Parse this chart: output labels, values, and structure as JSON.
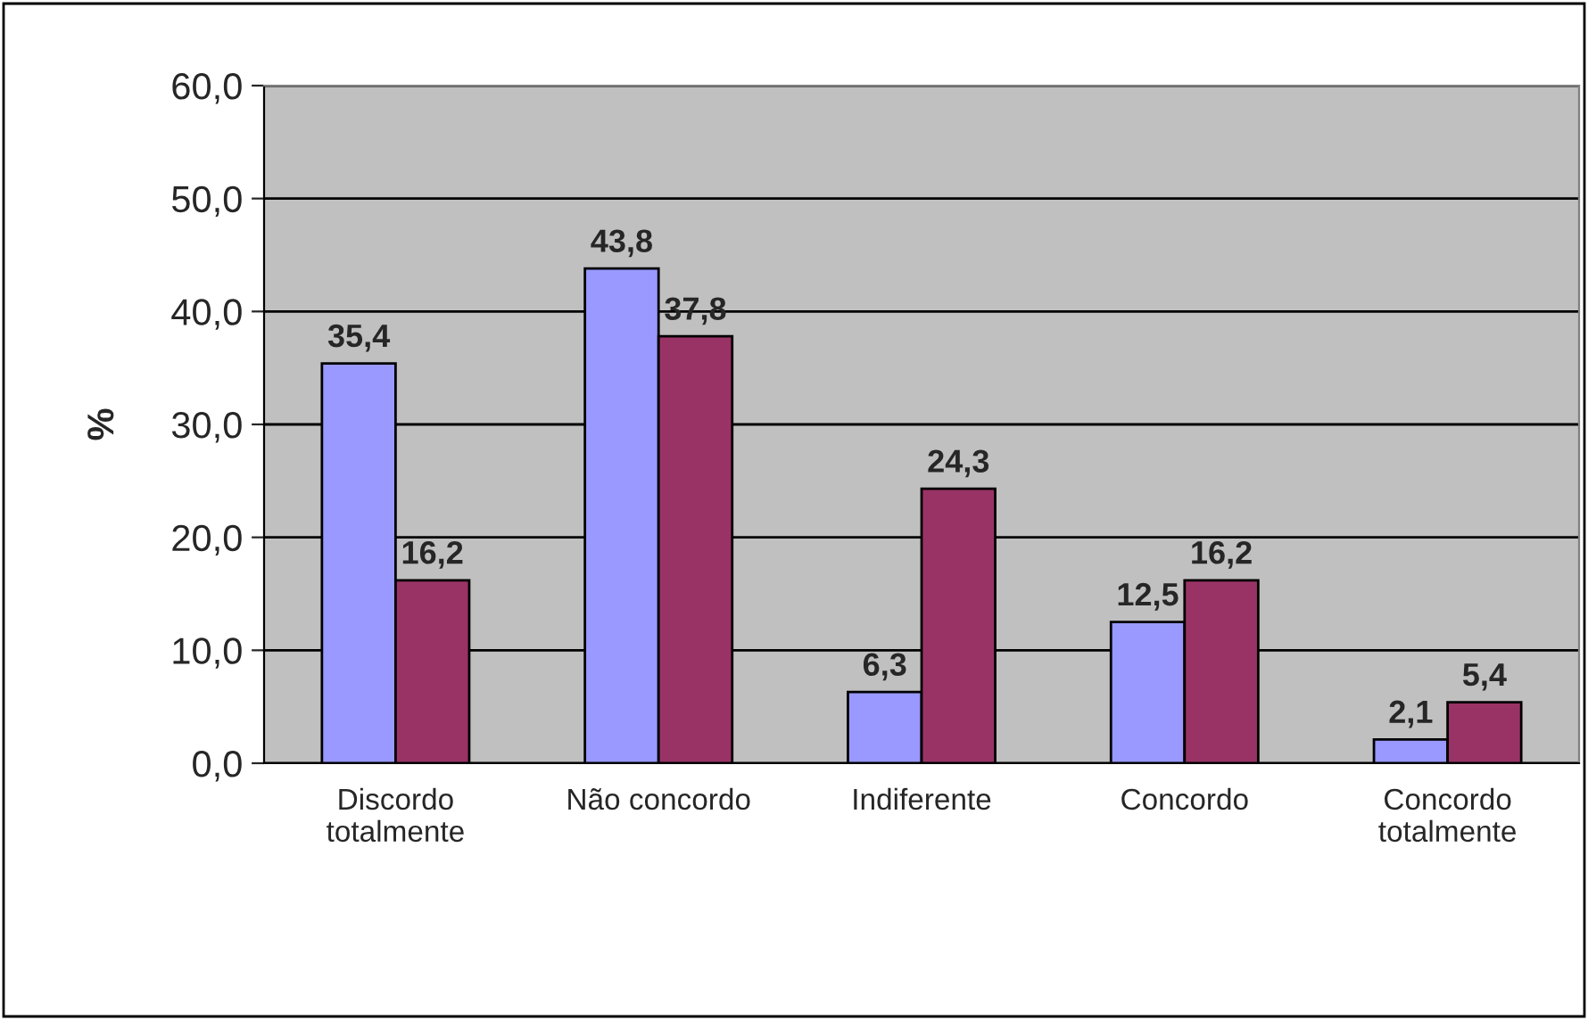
{
  "chart_data": {
    "type": "bar",
    "ylabel": "%",
    "categories": [
      "Discordo\ntotalmente",
      "Não concordo",
      "Indiferente",
      "Concordo",
      "Concordo\ntotalmente"
    ],
    "series": [
      {
        "color": "#9999ff",
        "values": [
          35.4,
          43.8,
          6.3,
          12.5,
          2.1
        ],
        "value_labels": [
          "35,4",
          "43,8",
          "6,3",
          "12,5",
          "2,1"
        ]
      },
      {
        "color": "#993366",
        "values": [
          16.2,
          37.8,
          24.3,
          16.2,
          5.4
        ],
        "value_labels": [
          "16,2",
          "37,8",
          "24,3",
          "16,2",
          "5,4"
        ]
      }
    ],
    "ylim": [
      0,
      60
    ],
    "yticks": [
      {
        "value": 0,
        "label": "0,0"
      },
      {
        "value": 10,
        "label": "10,0"
      },
      {
        "value": 20,
        "label": "20,0"
      },
      {
        "value": 30,
        "label": "30,0"
      },
      {
        "value": 40,
        "label": "40,0"
      },
      {
        "value": 50,
        "label": "50,0"
      },
      {
        "value": 60,
        "label": "60,0"
      }
    ],
    "grid": "y"
  }
}
